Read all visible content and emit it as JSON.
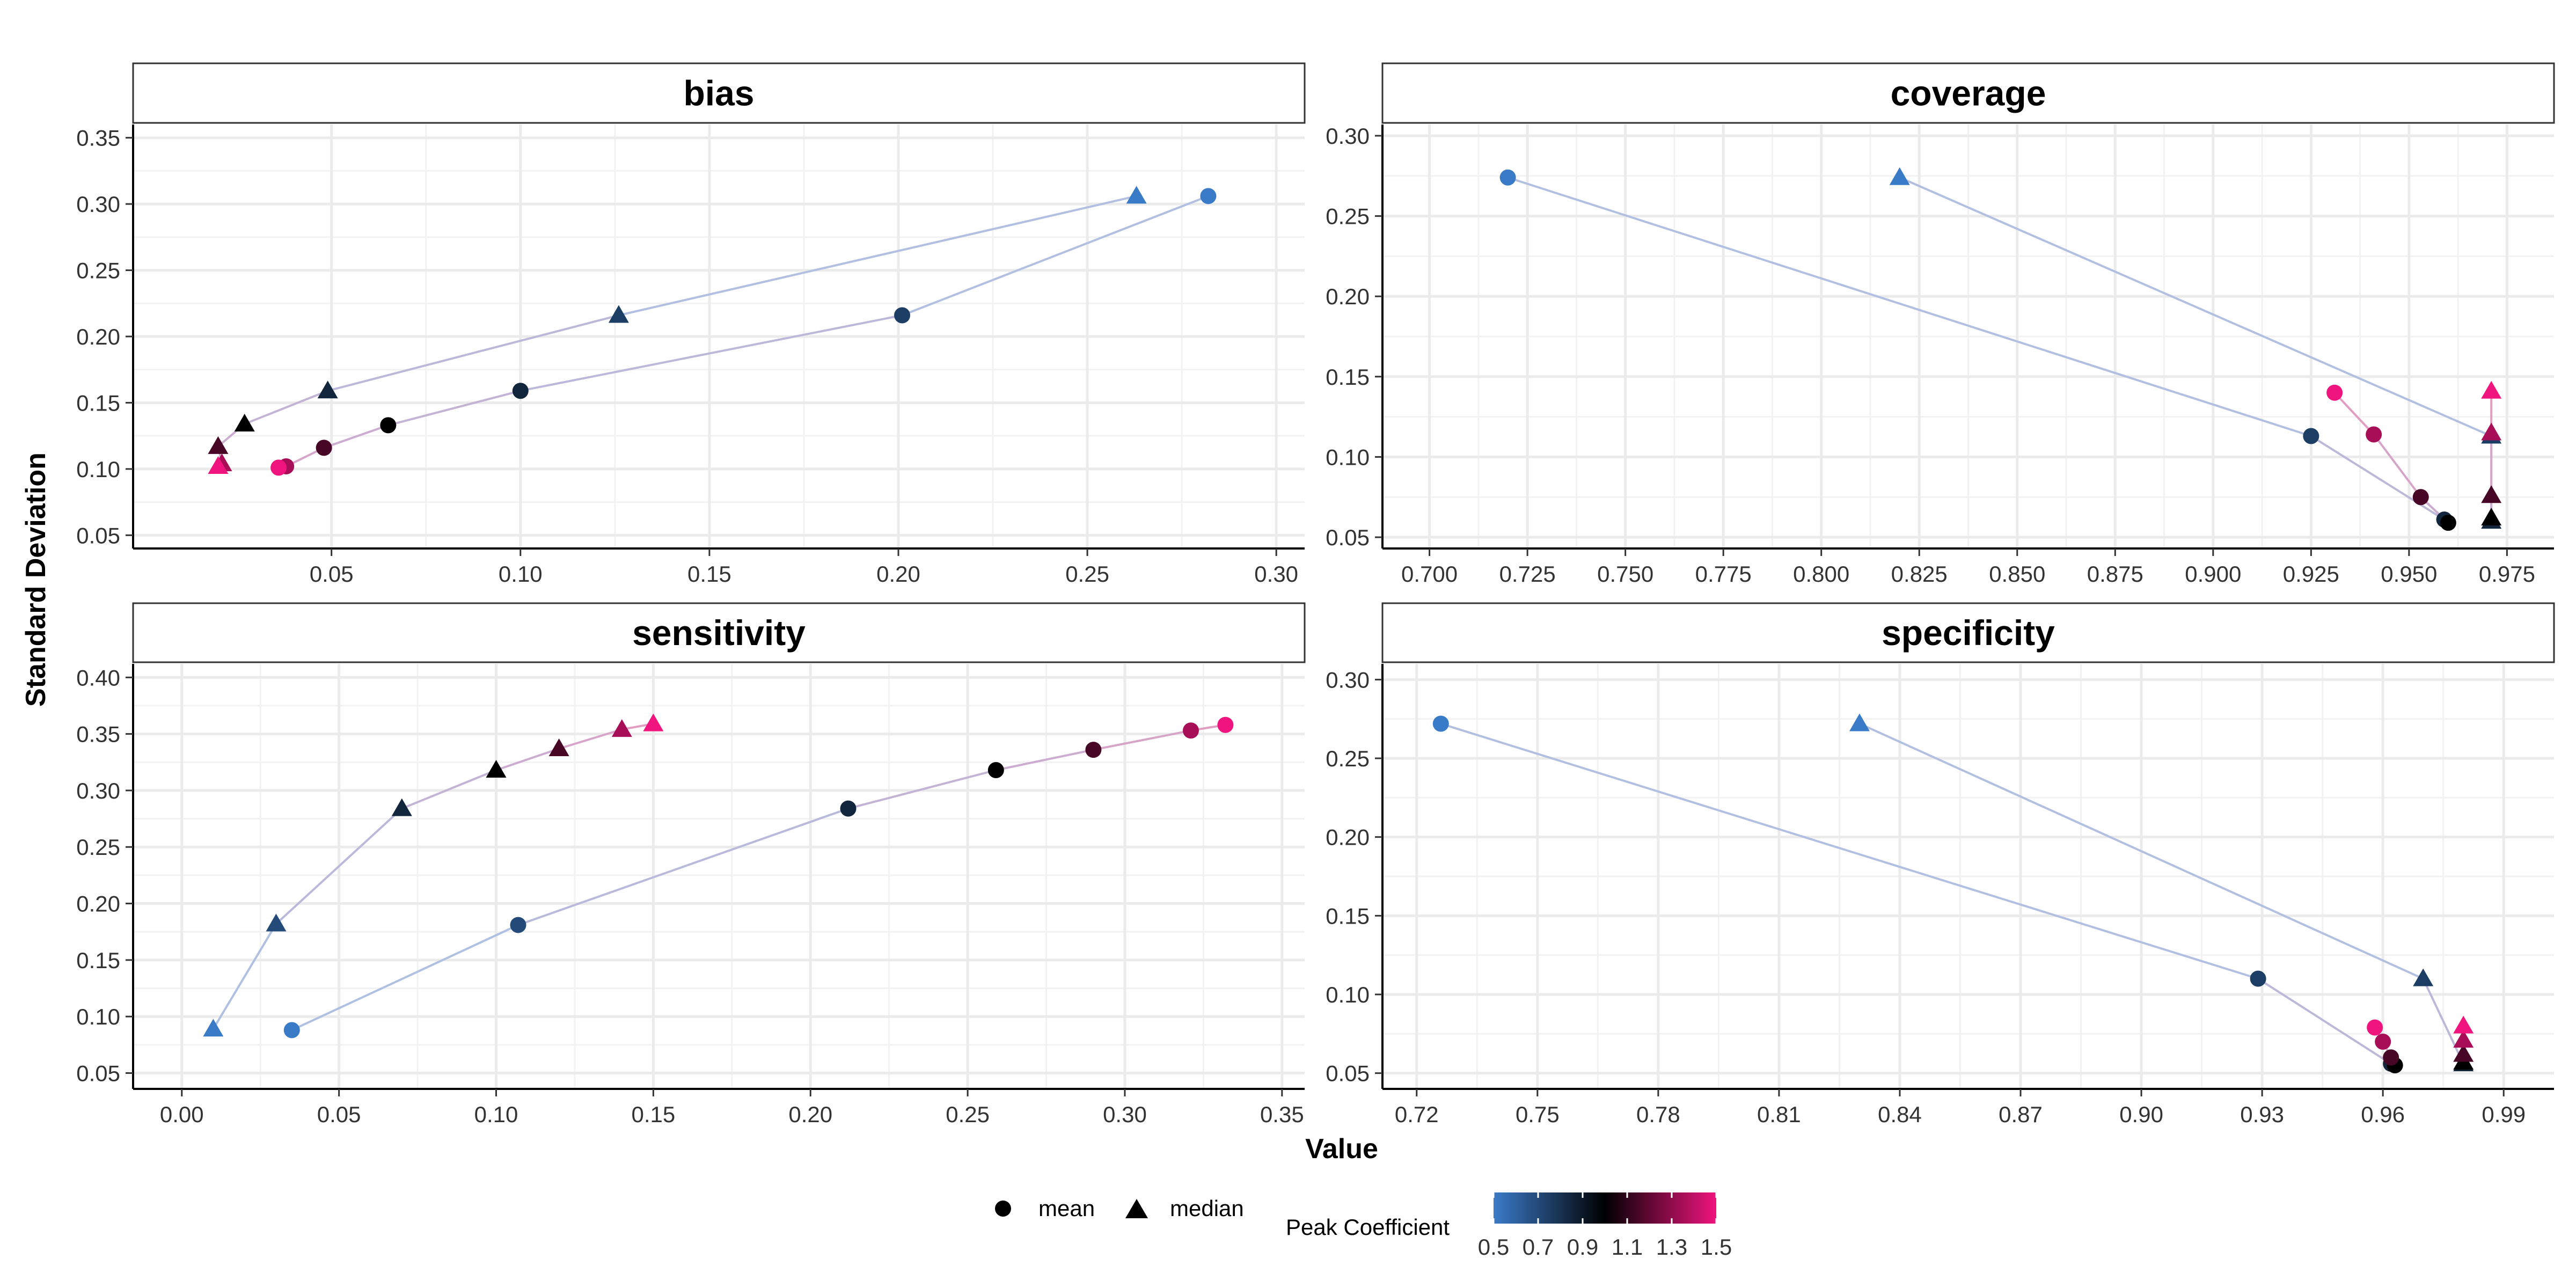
{
  "chart_data": {
    "type": "scatter",
    "xlabel": "Value",
    "ylabel": "Standard Deviation",
    "shape_legend": [
      {
        "name": "mean",
        "shape": "circle"
      },
      {
        "name": "median",
        "shape": "triangle"
      }
    ],
    "color_legend": {
      "title": "Peak Coefficient",
      "range": [
        0.5,
        1.5
      ],
      "ticks": [
        "0.5",
        "0.7",
        "0.9",
        "1.1",
        "1.3",
        "1.5"
      ],
      "low_color": "#3a7bc8",
      "mid_color": "#000000",
      "high_color": "#f0147e"
    },
    "grid": true,
    "legend_position": "bottom",
    "line_color_low": "#a9c4e6",
    "line_color_high": "#e59bbf",
    "panels": [
      {
        "title": "bias",
        "xlim": [
          -0.0025,
          0.3075
        ],
        "ylim": [
          0.04,
          0.36
        ],
        "xticks": [
          "0.05",
          "0.10",
          "0.15",
          "0.20",
          "0.25",
          "0.30"
        ],
        "xtick_values": [
          0.05,
          0.1,
          0.15,
          0.2,
          0.25,
          0.3
        ],
        "yticks": [
          "0.05",
          "0.10",
          "0.15",
          "0.20",
          "0.25",
          "0.30",
          "0.35"
        ],
        "ytick_values": [
          0.05,
          0.1,
          0.15,
          0.2,
          0.25,
          0.3,
          0.35
        ],
        "mean": [
          {
            "x": 0.282,
            "y": 0.306,
            "pc": 0.5
          },
          {
            "x": 0.201,
            "y": 0.216,
            "pc": 0.75
          },
          {
            "x": 0.1,
            "y": 0.159,
            "pc": 0.85
          },
          {
            "x": 0.065,
            "y": 0.133,
            "pc": 1.0
          },
          {
            "x": 0.048,
            "y": 0.116,
            "pc": 1.15
          },
          {
            "x": 0.038,
            "y": 0.102,
            "pc": 1.35
          },
          {
            "x": 0.036,
            "y": 0.101,
            "pc": 1.5
          }
        ],
        "median": [
          {
            "x": 0.263,
            "y": 0.306,
            "pc": 0.5
          },
          {
            "x": 0.126,
            "y": 0.216,
            "pc": 0.75
          },
          {
            "x": 0.049,
            "y": 0.159,
            "pc": 0.85
          },
          {
            "x": 0.027,
            "y": 0.134,
            "pc": 1.0
          },
          {
            "x": 0.02,
            "y": 0.117,
            "pc": 1.15
          },
          {
            "x": 0.021,
            "y": 0.104,
            "pc": 1.35
          },
          {
            "x": 0.02,
            "y": 0.102,
            "pc": 1.5
          }
        ]
      },
      {
        "title": "coverage",
        "xlim": [
          0.688,
          0.987
        ],
        "ylim": [
          0.043,
          0.307
        ],
        "xticks": [
          "0.700",
          "0.725",
          "0.750",
          "0.775",
          "0.800",
          "0.825",
          "0.850",
          "0.875",
          "0.900",
          "0.925",
          "0.950",
          "0.975"
        ],
        "xtick_values": [
          0.7,
          0.725,
          0.75,
          0.775,
          0.8,
          0.825,
          0.85,
          0.875,
          0.9,
          0.925,
          0.95,
          0.975
        ],
        "yticks": [
          "0.05",
          "0.10",
          "0.15",
          "0.20",
          "0.25",
          "0.30"
        ],
        "ytick_values": [
          0.05,
          0.1,
          0.15,
          0.2,
          0.25,
          0.3
        ],
        "mean": [
          {
            "x": 0.72,
            "y": 0.274,
            "pc": 0.5
          },
          {
            "x": 0.925,
            "y": 0.113,
            "pc": 0.75
          },
          {
            "x": 0.959,
            "y": 0.061,
            "pc": 0.85
          },
          {
            "x": 0.96,
            "y": 0.059,
            "pc": 1.0
          },
          {
            "x": 0.953,
            "y": 0.075,
            "pc": 1.15
          },
          {
            "x": 0.941,
            "y": 0.114,
            "pc": 1.35
          },
          {
            "x": 0.931,
            "y": 0.14,
            "pc": 1.5
          }
        ],
        "median": [
          {
            "x": 0.82,
            "y": 0.274,
            "pc": 0.5
          },
          {
            "x": 0.971,
            "y": 0.113,
            "pc": 0.75
          },
          {
            "x": 0.971,
            "y": 0.06,
            "pc": 0.85
          },
          {
            "x": 0.971,
            "y": 0.062,
            "pc": 1.0
          },
          {
            "x": 0.971,
            "y": 0.076,
            "pc": 1.15
          },
          {
            "x": 0.971,
            "y": 0.115,
            "pc": 1.35
          },
          {
            "x": 0.971,
            "y": 0.141,
            "pc": 1.5
          }
        ]
      },
      {
        "title": "sensitivity",
        "xlim": [
          -0.0155,
          0.3572
        ],
        "ylim": [
          0.036,
          0.412
        ],
        "xticks": [
          "0.00",
          "0.05",
          "0.10",
          "0.15",
          "0.20",
          "0.25",
          "0.30",
          "0.35"
        ],
        "xtick_values": [
          0.0,
          0.05,
          0.1,
          0.15,
          0.2,
          0.25,
          0.3,
          0.35
        ],
        "yticks": [
          "0.05",
          "0.10",
          "0.15",
          "0.20",
          "0.25",
          "0.30",
          "0.35",
          "0.40"
        ],
        "ytick_values": [
          0.05,
          0.1,
          0.15,
          0.2,
          0.25,
          0.3,
          0.35,
          0.4
        ],
        "mean": [
          {
            "x": 0.035,
            "y": 0.088,
            "pc": 0.5
          },
          {
            "x": 0.107,
            "y": 0.181,
            "pc": 0.7
          },
          {
            "x": 0.212,
            "y": 0.284,
            "pc": 0.85
          },
          {
            "x": 0.259,
            "y": 0.318,
            "pc": 1.0
          },
          {
            "x": 0.29,
            "y": 0.336,
            "pc": 1.15
          },
          {
            "x": 0.321,
            "y": 0.353,
            "pc": 1.35
          },
          {
            "x": 0.332,
            "y": 0.358,
            "pc": 1.5
          }
        ],
        "median": [
          {
            "x": 0.01,
            "y": 0.089,
            "pc": 0.5
          },
          {
            "x": 0.03,
            "y": 0.182,
            "pc": 0.7
          },
          {
            "x": 0.07,
            "y": 0.284,
            "pc": 0.85
          },
          {
            "x": 0.1,
            "y": 0.318,
            "pc": 1.0
          },
          {
            "x": 0.12,
            "y": 0.337,
            "pc": 1.15
          },
          {
            "x": 0.14,
            "y": 0.354,
            "pc": 1.35
          },
          {
            "x": 0.15,
            "y": 0.359,
            "pc": 1.5
          }
        ]
      },
      {
        "title": "specificity",
        "xlim": [
          0.7115,
          1.0025
        ],
        "ylim": [
          0.04,
          0.31
        ],
        "xticks": [
          "0.72",
          "0.75",
          "0.78",
          "0.81",
          "0.84",
          "0.87",
          "0.90",
          "0.93",
          "0.96",
          "0.99"
        ],
        "xtick_values": [
          0.72,
          0.75,
          0.78,
          0.81,
          0.84,
          0.87,
          0.9,
          0.93,
          0.96,
          0.99
        ],
        "yticks": [
          "0.05",
          "0.10",
          "0.15",
          "0.20",
          "0.25",
          "0.30"
        ],
        "ytick_values": [
          0.05,
          0.1,
          0.15,
          0.2,
          0.25,
          0.3
        ],
        "mean": [
          {
            "x": 0.726,
            "y": 0.272,
            "pc": 0.5
          },
          {
            "x": 0.929,
            "y": 0.11,
            "pc": 0.75
          },
          {
            "x": 0.962,
            "y": 0.056,
            "pc": 0.85
          },
          {
            "x": 0.963,
            "y": 0.055,
            "pc": 1.0
          },
          {
            "x": 0.962,
            "y": 0.06,
            "pc": 1.15
          },
          {
            "x": 0.96,
            "y": 0.07,
            "pc": 1.35
          },
          {
            "x": 0.958,
            "y": 0.079,
            "pc": 1.5
          }
        ],
        "median": [
          {
            "x": 0.83,
            "y": 0.272,
            "pc": 0.5
          },
          {
            "x": 0.97,
            "y": 0.11,
            "pc": 0.75
          },
          {
            "x": 0.98,
            "y": 0.056,
            "pc": 0.85
          },
          {
            "x": 0.98,
            "y": 0.057,
            "pc": 1.0
          },
          {
            "x": 0.98,
            "y": 0.062,
            "pc": 1.15
          },
          {
            "x": 0.98,
            "y": 0.071,
            "pc": 1.35
          },
          {
            "x": 0.98,
            "y": 0.08,
            "pc": 1.5
          }
        ]
      }
    ]
  }
}
